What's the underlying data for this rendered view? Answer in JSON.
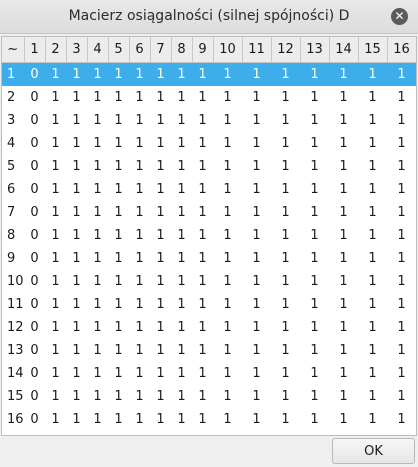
{
  "window": {
    "title": "Macierz osiągalności (silnej spójności) D",
    "close_icon": "close-icon"
  },
  "table": {
    "corner": "~",
    "columns": [
      "1",
      "2",
      "3",
      "4",
      "5",
      "6",
      "7",
      "8",
      "9",
      "10",
      "11",
      "12",
      "13",
      "14",
      "15",
      "16"
    ],
    "selected_row": 0,
    "rows": [
      {
        "label": "1",
        "cells": [
          "0",
          "1",
          "1",
          "1",
          "1",
          "1",
          "1",
          "1",
          "1",
          "1",
          "1",
          "1",
          "1",
          "1",
          "1",
          "1"
        ]
      },
      {
        "label": "2",
        "cells": [
          "0",
          "1",
          "1",
          "1",
          "1",
          "1",
          "1",
          "1",
          "1",
          "1",
          "1",
          "1",
          "1",
          "1",
          "1",
          "1"
        ]
      },
      {
        "label": "3",
        "cells": [
          "0",
          "1",
          "1",
          "1",
          "1",
          "1",
          "1",
          "1",
          "1",
          "1",
          "1",
          "1",
          "1",
          "1",
          "1",
          "1"
        ]
      },
      {
        "label": "4",
        "cells": [
          "0",
          "1",
          "1",
          "1",
          "1",
          "1",
          "1",
          "1",
          "1",
          "1",
          "1",
          "1",
          "1",
          "1",
          "1",
          "1"
        ]
      },
      {
        "label": "5",
        "cells": [
          "0",
          "1",
          "1",
          "1",
          "1",
          "1",
          "1",
          "1",
          "1",
          "1",
          "1",
          "1",
          "1",
          "1",
          "1",
          "1"
        ]
      },
      {
        "label": "6",
        "cells": [
          "0",
          "1",
          "1",
          "1",
          "1",
          "1",
          "1",
          "1",
          "1",
          "1",
          "1",
          "1",
          "1",
          "1",
          "1",
          "1"
        ]
      },
      {
        "label": "7",
        "cells": [
          "0",
          "1",
          "1",
          "1",
          "1",
          "1",
          "1",
          "1",
          "1",
          "1",
          "1",
          "1",
          "1",
          "1",
          "1",
          "1"
        ]
      },
      {
        "label": "8",
        "cells": [
          "0",
          "1",
          "1",
          "1",
          "1",
          "1",
          "1",
          "1",
          "1",
          "1",
          "1",
          "1",
          "1",
          "1",
          "1",
          "1"
        ]
      },
      {
        "label": "9",
        "cells": [
          "0",
          "1",
          "1",
          "1",
          "1",
          "1",
          "1",
          "1",
          "1",
          "1",
          "1",
          "1",
          "1",
          "1",
          "1",
          "1"
        ]
      },
      {
        "label": "10",
        "cells": [
          "0",
          "1",
          "1",
          "1",
          "1",
          "1",
          "1",
          "1",
          "1",
          "1",
          "1",
          "1",
          "1",
          "1",
          "1",
          "1"
        ]
      },
      {
        "label": "11",
        "cells": [
          "0",
          "1",
          "1",
          "1",
          "1",
          "1",
          "1",
          "1",
          "1",
          "1",
          "1",
          "1",
          "1",
          "1",
          "1",
          "1"
        ]
      },
      {
        "label": "12",
        "cells": [
          "0",
          "1",
          "1",
          "1",
          "1",
          "1",
          "1",
          "1",
          "1",
          "1",
          "1",
          "1",
          "1",
          "1",
          "1",
          "1"
        ]
      },
      {
        "label": "13",
        "cells": [
          "0",
          "1",
          "1",
          "1",
          "1",
          "1",
          "1",
          "1",
          "1",
          "1",
          "1",
          "1",
          "1",
          "1",
          "1",
          "1"
        ]
      },
      {
        "label": "14",
        "cells": [
          "0",
          "1",
          "1",
          "1",
          "1",
          "1",
          "1",
          "1",
          "1",
          "1",
          "1",
          "1",
          "1",
          "1",
          "1",
          "1"
        ]
      },
      {
        "label": "15",
        "cells": [
          "0",
          "1",
          "1",
          "1",
          "1",
          "1",
          "1",
          "1",
          "1",
          "1",
          "1",
          "1",
          "1",
          "1",
          "1",
          "1"
        ]
      },
      {
        "label": "16",
        "cells": [
          "0",
          "1",
          "1",
          "1",
          "1",
          "1",
          "1",
          "1",
          "1",
          "1",
          "1",
          "1",
          "1",
          "1",
          "1",
          "1"
        ]
      }
    ]
  },
  "footer": {
    "ok_label": "OK"
  },
  "colors": {
    "selection": "#3daee9",
    "selection_text": "#ffffff"
  }
}
